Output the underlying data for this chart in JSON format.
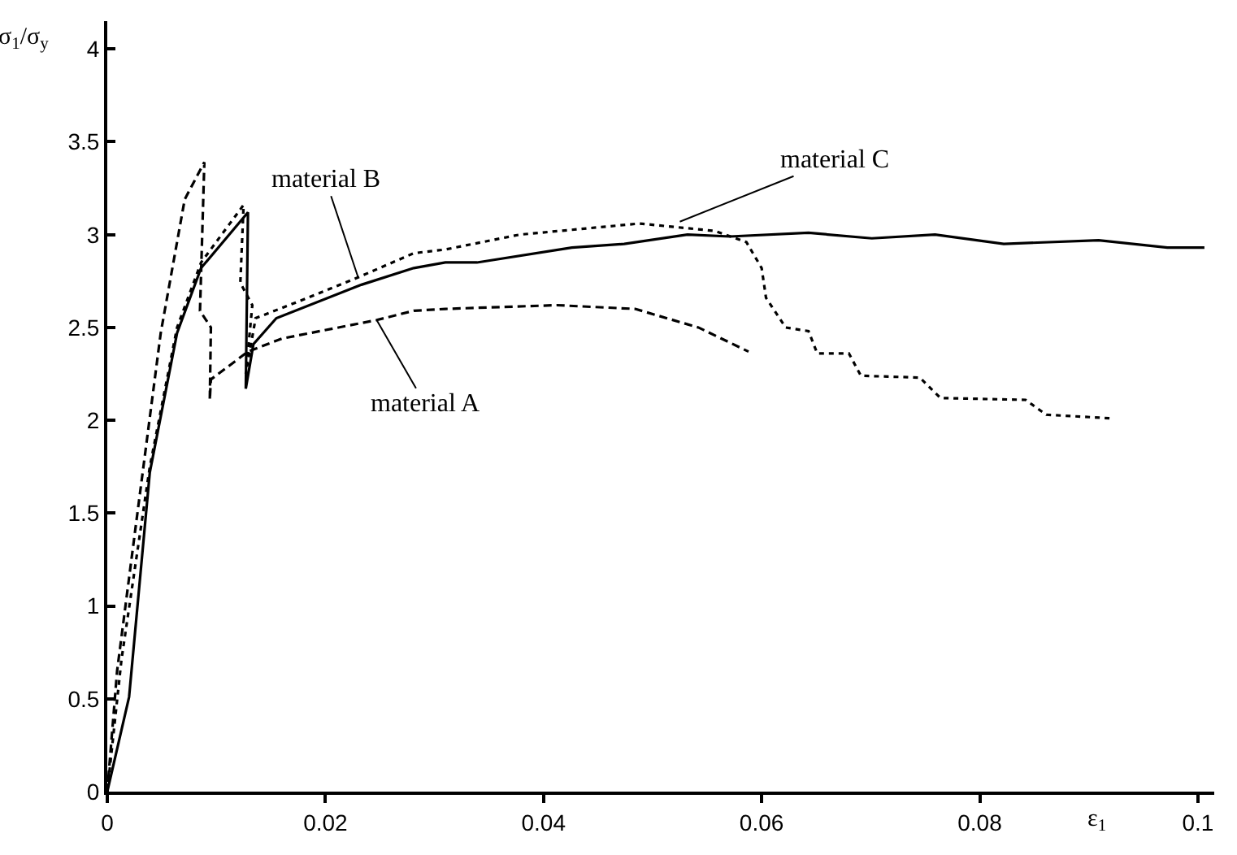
{
  "chart_data": {
    "type": "line",
    "xlabel": "ε$_{1}$",
    "ylabel": "σ$_{1}$/σ$_{y}$",
    "xlim": [
      0,
      0.1015
    ],
    "ylim": [
      0,
      4.15
    ],
    "xticks": [
      0,
      0.02,
      0.04,
      0.06,
      0.08,
      0.1
    ],
    "yticks": [
      0,
      0.5,
      1,
      1.5,
      2,
      2.5,
      3,
      3.5,
      4
    ],
    "marker": "none",
    "series": [
      {
        "color": "#000000",
        "line_style": "dashed",
        "x": [
          0,
          0.0009,
          0.0025,
          0.0049,
          0.0071,
          0.0089,
          0.0085,
          0.0095,
          0.0094,
          0.0095,
          0.0129,
          0.016,
          0.0247,
          0.0281,
          0.031,
          0.0412,
          0.0484,
          0.0542,
          0.0588
        ],
        "values": [
          0,
          0.65,
          1.38,
          2.47,
          3.19,
          3.39,
          2.59,
          2.5,
          2.11,
          2.22,
          2.37,
          2.44,
          2.54,
          2.59,
          2.6,
          2.62,
          2.6,
          2.5,
          2.37
        ]
      },
      {
        "color": "#000000",
        "line_style": "solid",
        "x": [
          0,
          0.002,
          0.0039,
          0.0064,
          0.0086,
          0.0129,
          0.0127,
          0.0134,
          0.0155,
          0.0233,
          0.0281,
          0.031,
          0.0339,
          0.0426,
          0.0474,
          0.0532,
          0.0571,
          0.0643,
          0.0701,
          0.0759,
          0.0822,
          0.0909,
          0.0972,
          0.1006
        ],
        "values": [
          0,
          0.51,
          1.72,
          2.47,
          2.82,
          3.12,
          2.17,
          2.41,
          2.55,
          2.73,
          2.82,
          2.85,
          2.85,
          2.93,
          2.95,
          3.0,
          2.99,
          3.01,
          2.98,
          3.0,
          2.95,
          2.97,
          2.93,
          2.93
        ]
      },
      {
        "color": "#000000",
        "line_style": "dotted",
        "x": [
          0,
          0.0013,
          0.0039,
          0.0064,
          0.0086,
          0.0125,
          0.0122,
          0.0133,
          0.0127,
          0.0136,
          0.0184,
          0.023,
          0.0281,
          0.031,
          0.0378,
          0.0488,
          0.0557,
          0.0586,
          0.06,
          0.0604,
          0.0622,
          0.0643,
          0.0651,
          0.068,
          0.0691,
          0.0745,
          0.0764,
          0.0842,
          0.0861,
          0.0922
        ],
        "values": [
          0,
          0.71,
          1.75,
          2.5,
          2.85,
          3.16,
          2.74,
          2.62,
          2.25,
          2.55,
          2.66,
          2.77,
          2.9,
          2.92,
          3.0,
          3.06,
          3.02,
          2.96,
          2.82,
          2.66,
          2.5,
          2.48,
          2.36,
          2.36,
          2.24,
          2.23,
          2.12,
          2.11,
          2.03,
          2.01
        ]
      }
    ],
    "annotations": [
      {
        "text": "material B",
        "x": 0.023,
        "y": 2.77
      },
      {
        "text": "material A",
        "x": 0.0247,
        "y": 2.54
      },
      {
        "text": "material C",
        "x": 0.0525,
        "y": 3.07
      }
    ]
  }
}
